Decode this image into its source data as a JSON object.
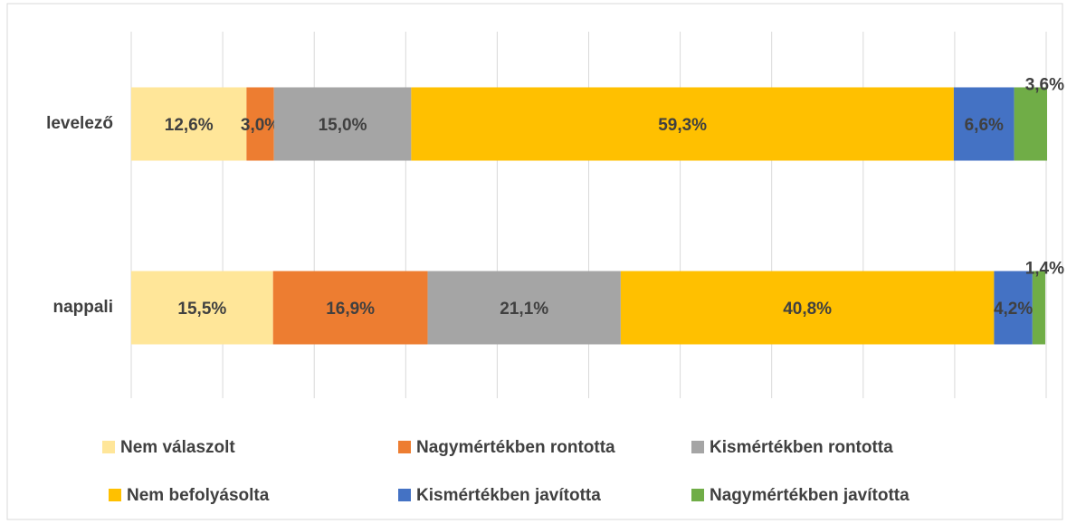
{
  "chart_data": {
    "type": "stacked_barh",
    "categories": [
      "levelező",
      "nappali"
    ],
    "series": [
      {
        "name": "Nem válaszolt",
        "color": "#FFE699",
        "values": [
          12.6,
          15.5
        ],
        "value_labels": [
          "12,6%",
          "15,5%"
        ]
      },
      {
        "name": "Nagymértékben rontotta",
        "color": "#ED7D31",
        "values": [
          3.0,
          16.9
        ],
        "value_labels": [
          "3,0%",
          "16,9%"
        ]
      },
      {
        "name": "Kismértékben rontotta",
        "color": "#A5A5A5",
        "values": [
          15.0,
          21.1
        ],
        "value_labels": [
          "15,0%",
          "21,1%"
        ]
      },
      {
        "name": "Nem befolyásolta",
        "color": "#FFC000",
        "values": [
          59.3,
          40.8
        ],
        "value_labels": [
          "59,3%",
          "40,8%"
        ]
      },
      {
        "name": "Kismértékben javította",
        "color": "#4472C4",
        "values": [
          6.6,
          4.2
        ],
        "value_labels": [
          "6,6%",
          "4,2%"
        ]
      },
      {
        "name": "Nagymértékben javította",
        "color": "#70AD47",
        "values": [
          3.6,
          1.4
        ],
        "value_labels": [
          "3,6%",
          "1,4%"
        ]
      }
    ],
    "xlim": [
      0,
      100
    ],
    "xticks": [
      0,
      10,
      20,
      30,
      40,
      50,
      60,
      70,
      80,
      90,
      100
    ],
    "grid": true,
    "tick_labels": false,
    "legend": "bottom"
  }
}
